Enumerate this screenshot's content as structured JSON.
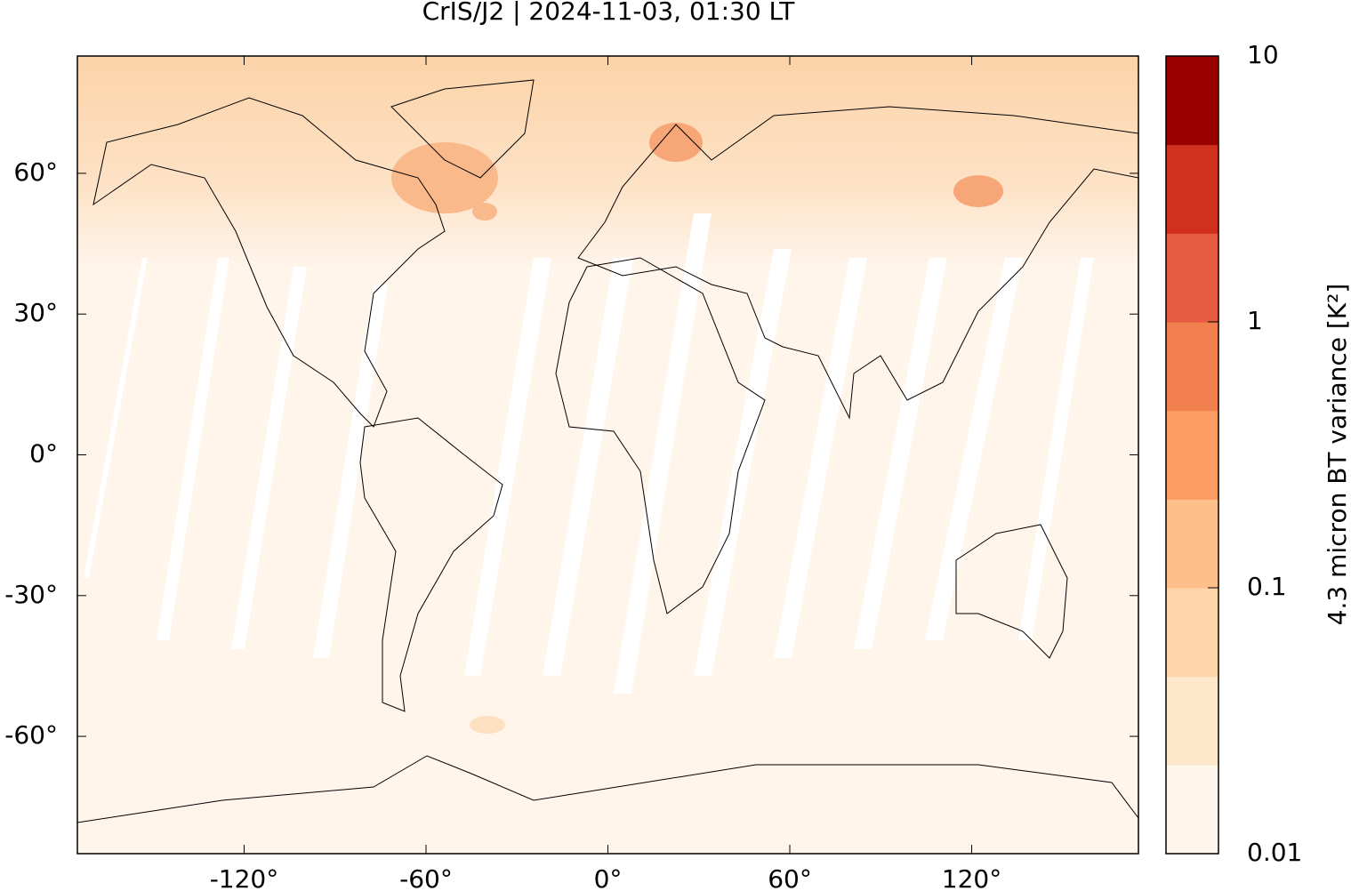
{
  "chart_data": {
    "type": "map",
    "title": "CrIS/J2 | 2024-11-03, 01:30 LT",
    "xlim": [
      -175,
      175
    ],
    "ylim": [
      -85,
      85
    ],
    "xticks": [
      {
        "value": -120,
        "label": "-120°"
      },
      {
        "value": -60,
        "label": "-60°"
      },
      {
        "value": 0,
        "label": "0°"
      },
      {
        "value": 60,
        "label": "60°"
      },
      {
        "value": 120,
        "label": "120°"
      }
    ],
    "yticks": [
      {
        "value": -60,
        "label": "-60°"
      },
      {
        "value": -30,
        "label": "-30°"
      },
      {
        "value": 0,
        "label": "0°"
      },
      {
        "value": 30,
        "label": "30°"
      },
      {
        "value": 60,
        "label": "60°"
      }
    ],
    "colorbar": {
      "label": "4.3 micron BT variance [K²]",
      "log": true,
      "clim": [
        0.01,
        10
      ],
      "ticks": [
        {
          "value": 0.01,
          "label": "0.01"
        },
        {
          "value": 0.1,
          "label": "0.1"
        },
        1,
        10
      ],
      "colors": [
        "#fff5eb",
        "#fde8cc",
        "#fdd5a8",
        "#fdc08a",
        "#fb9c62",
        "#f2804f",
        "#e55a40",
        "#d0301e",
        "#990000"
      ]
    }
  }
}
